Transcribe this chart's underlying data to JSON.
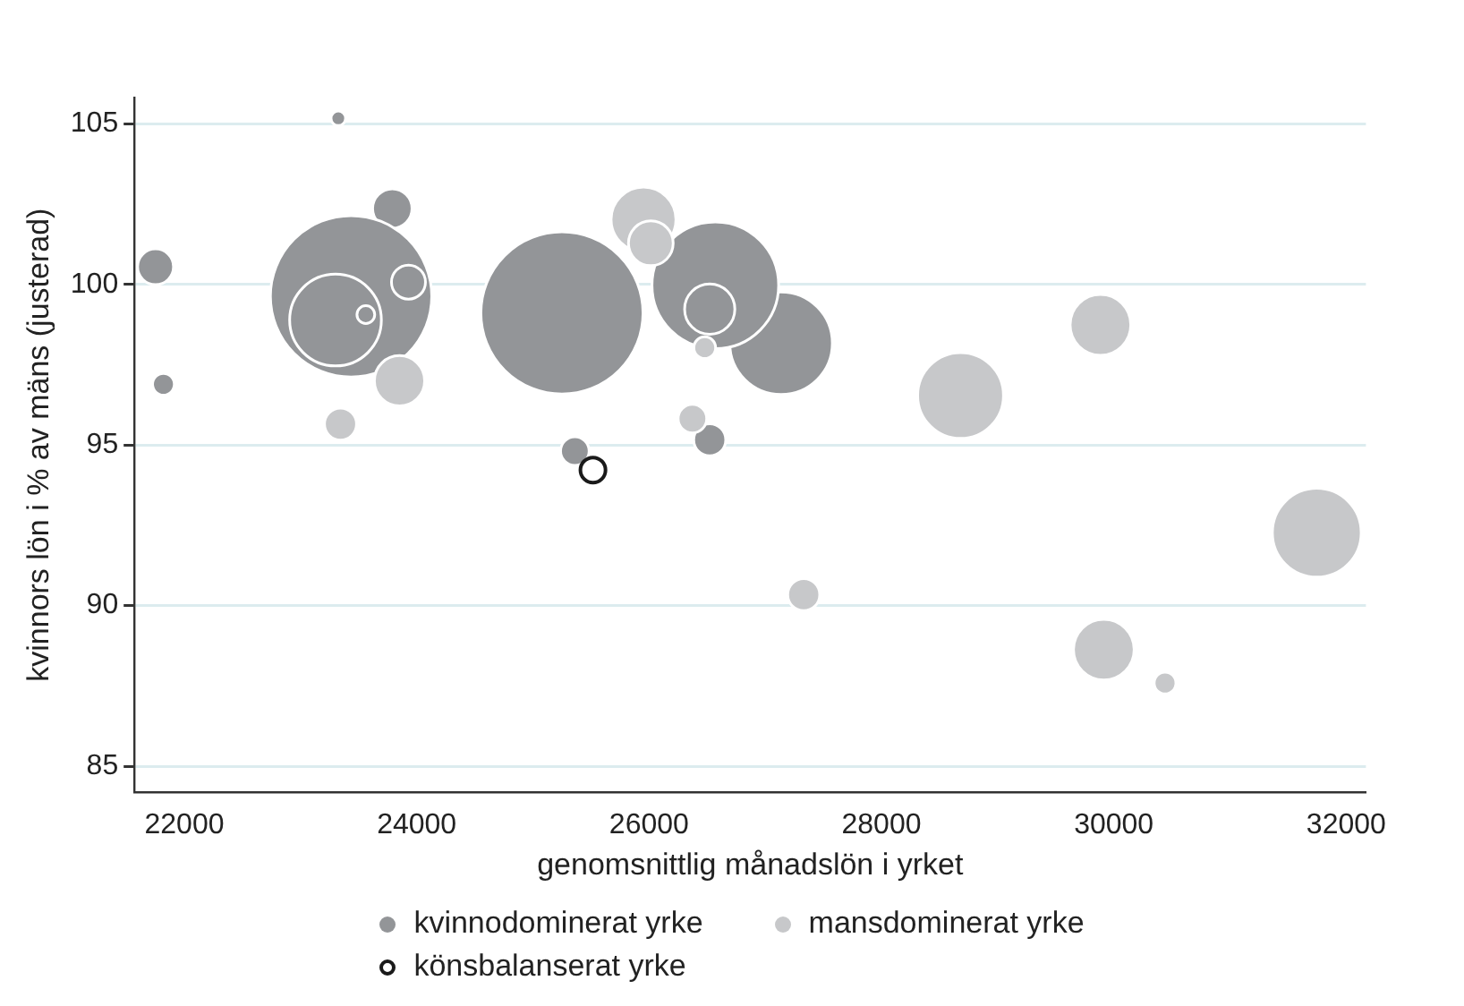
{
  "chart_data": {
    "type": "bubble",
    "xlabel": "genomsnittlig månadslön i yrket",
    "ylabel": "kvinnors lön i % av mäns (justerad)",
    "xlim": [
      21570,
      32170
    ],
    "xticks": [
      22000,
      24000,
      26000,
      28000,
      30000,
      32000
    ],
    "ylim": [
      84.2,
      105.8
    ],
    "yticks": [
      85,
      90,
      95,
      100,
      105
    ],
    "grid": "y",
    "legend": "bottom",
    "series": [
      {
        "name": "kvinnodominerat yrke",
        "color": "#939598",
        "x": [
          21752,
          21820,
          23325,
          23790,
          23435,
          23301,
          23562,
          23929,
          25250,
          27136,
          26570,
          26522,
          25361,
          26522
        ],
        "values": [
          100.55,
          96.89,
          105.17,
          102.36,
          99.63,
          98.89,
          99.06,
          100.07,
          99.11,
          98.17,
          99.97,
          99.23,
          94.81,
          95.16
        ],
        "sizes": [
          0.049,
          0.018,
          0.008,
          0.059,
          0.99,
          0.32,
          0.012,
          0.044,
          1,
          0.4,
          0.61,
          0.096,
          0.031,
          0.039
        ]
      },
      {
        "name": "mansdominerat yrke",
        "color": "#c7c8ca",
        "x": [
          25952,
          26015,
          26479,
          23852,
          23344,
          26373,
          28681,
          29885,
          31747,
          27331,
          29914,
          30441
        ],
        "values": [
          102.02,
          101.28,
          98.03,
          97.0,
          95.65,
          95.82,
          96.54,
          98.74,
          92.27,
          90.34,
          88.63,
          87.59
        ],
        "sizes": [
          0.16,
          0.076,
          0.018,
          0.096,
          0.039,
          0.031,
          0.28,
          0.14,
          0.3,
          0.039,
          0.14,
          0.018
        ]
      },
      {
        "name": "könsbalanserat yrke",
        "color": "#1a1a1a",
        "marker": "circle",
        "x": [
          25517
        ],
        "values": [
          94.22
        ],
        "sizes": [
          0.024
        ]
      }
    ]
  }
}
